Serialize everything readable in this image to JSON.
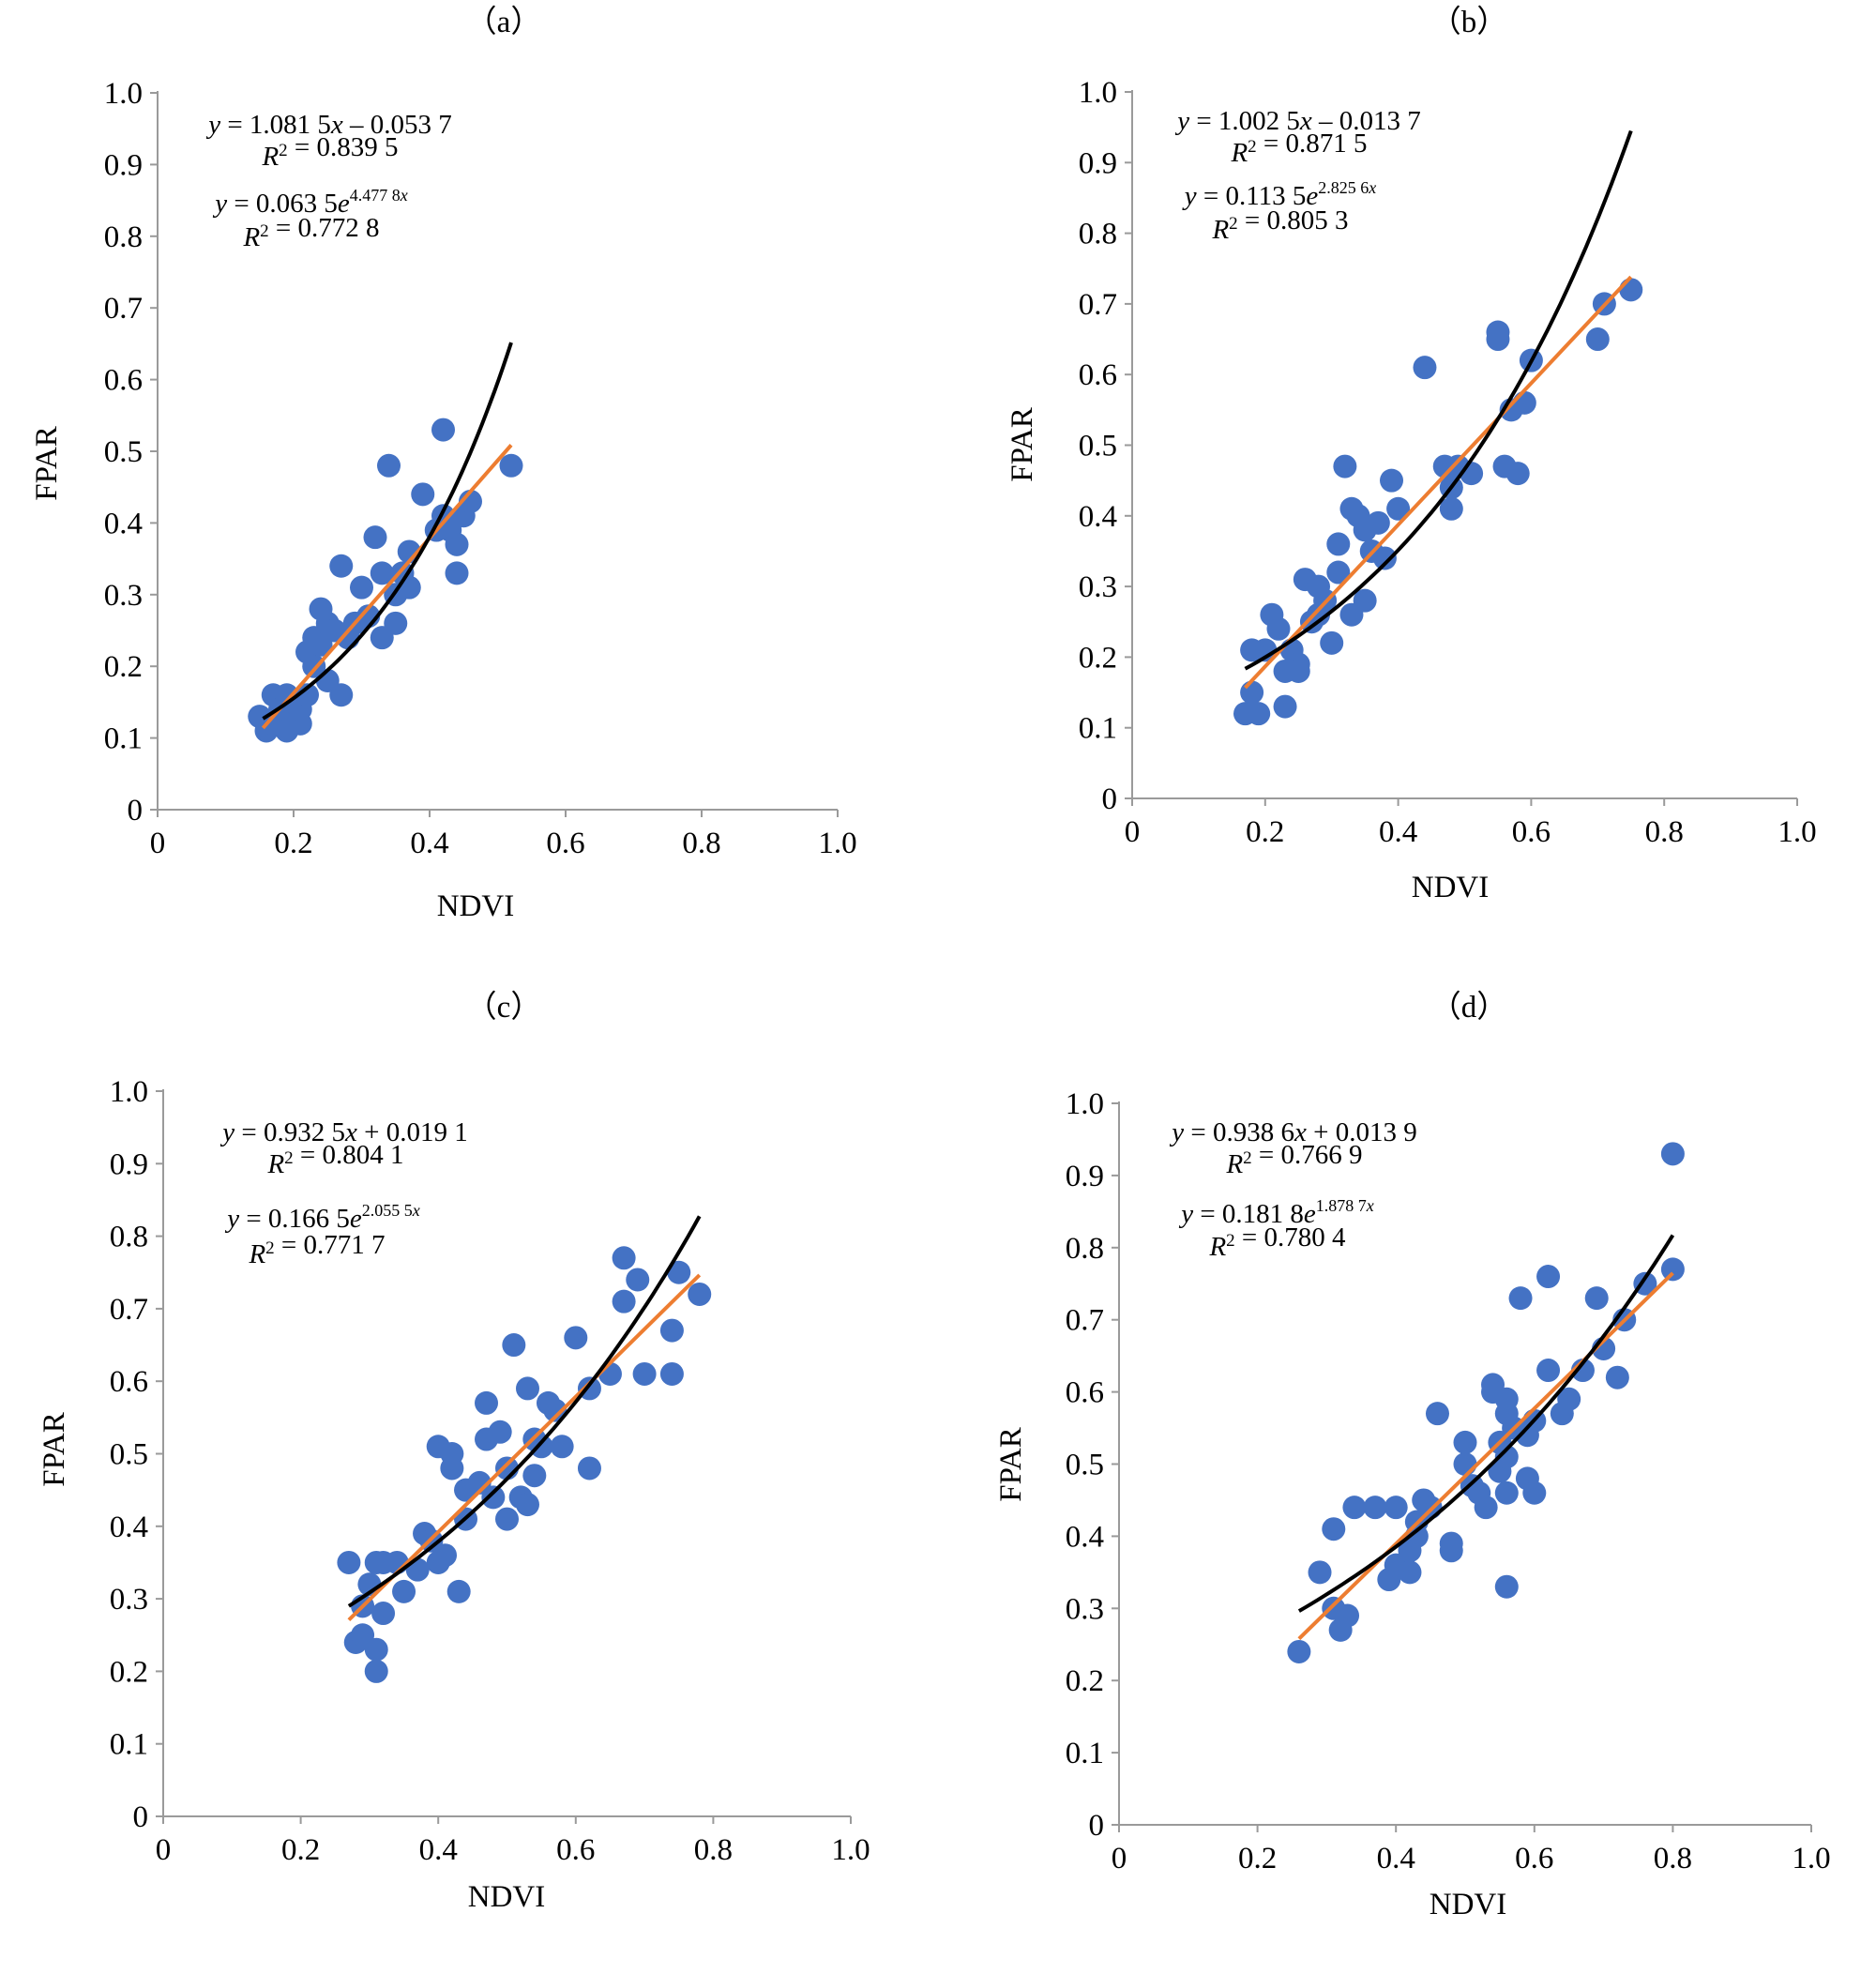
{
  "colors": {
    "points": "#4472c4",
    "linear_fit": "#ed7d31",
    "exp_fit": "#000000",
    "axis": "#9a9a9a"
  },
  "chart_data": [
    {
      "type": "scatter",
      "panel": "（a）",
      "xlabel": "NDVI",
      "ylabel": "FPAR",
      "xlim": [
        0,
        1.0
      ],
      "ylim": [
        0,
        1.0
      ],
      "xticks": [
        "0",
        "0.2",
        "0.4",
        "0.6",
        "0.8",
        "1.0"
      ],
      "yticks": [
        "0",
        "0.1",
        "0.2",
        "0.3",
        "0.4",
        "0.5",
        "0.6",
        "0.7",
        "0.8",
        "0.9",
        "1.0"
      ],
      "eq1": "y = 1.081 5x – 0.053 7",
      "r1": "R² = 0.839 5",
      "eq2": "y = 0.063 5e^(4.477 8x)",
      "r2": "R² = 0.772 8",
      "linear_fit": {
        "slope": 1.0815,
        "intercept": -0.0537,
        "x_range": [
          0.155,
          0.52
        ]
      },
      "exp_fit": {
        "a": 0.0635,
        "b": 4.4778,
        "x_range": [
          0.155,
          0.52
        ]
      },
      "points": [
        [
          0.15,
          0.13
        ],
        [
          0.16,
          0.11
        ],
        [
          0.17,
          0.16
        ],
        [
          0.17,
          0.12
        ],
        [
          0.18,
          0.15
        ],
        [
          0.18,
          0.14
        ],
        [
          0.19,
          0.16
        ],
        [
          0.19,
          0.11
        ],
        [
          0.2,
          0.13
        ],
        [
          0.2,
          0.15
        ],
        [
          0.21,
          0.12
        ],
        [
          0.21,
          0.14
        ],
        [
          0.22,
          0.16
        ],
        [
          0.22,
          0.22
        ],
        [
          0.23,
          0.24
        ],
        [
          0.23,
          0.2
        ],
        [
          0.24,
          0.28
        ],
        [
          0.24,
          0.23
        ],
        [
          0.25,
          0.26
        ],
        [
          0.25,
          0.18
        ],
        [
          0.26,
          0.25
        ],
        [
          0.27,
          0.16
        ],
        [
          0.27,
          0.34
        ],
        [
          0.28,
          0.24
        ],
        [
          0.29,
          0.26
        ],
        [
          0.3,
          0.31
        ],
        [
          0.31,
          0.27
        ],
        [
          0.32,
          0.38
        ],
        [
          0.33,
          0.33
        ],
        [
          0.33,
          0.24
        ],
        [
          0.34,
          0.48
        ],
        [
          0.35,
          0.3
        ],
        [
          0.35,
          0.26
        ],
        [
          0.36,
          0.33
        ],
        [
          0.37,
          0.36
        ],
        [
          0.37,
          0.31
        ],
        [
          0.39,
          0.44
        ],
        [
          0.41,
          0.39
        ],
        [
          0.42,
          0.41
        ],
        [
          0.42,
          0.53
        ],
        [
          0.43,
          0.39
        ],
        [
          0.44,
          0.37
        ],
        [
          0.44,
          0.33
        ],
        [
          0.45,
          0.41
        ],
        [
          0.46,
          0.43
        ],
        [
          0.52,
          0.48
        ]
      ]
    },
    {
      "type": "scatter",
      "panel": "（b）",
      "xlabel": "NDVI",
      "ylabel": "FPAR",
      "xlim": [
        0,
        1.0
      ],
      "ylim": [
        0,
        1.0
      ],
      "xticks": [
        "0",
        "0.2",
        "0.4",
        "0.6",
        "0.8",
        "1.0"
      ],
      "yticks": [
        "0",
        "0.1",
        "0.2",
        "0.3",
        "0.4",
        "0.5",
        "0.6",
        "0.7",
        "0.8",
        "0.9",
        "1.0"
      ],
      "eq1": "y = 1.002 5x – 0.013 7",
      "r1": "R² = 0.871 5",
      "eq2": "y = 0.113 5e^(2.825 6x)",
      "r2": "R² = 0.805 3",
      "linear_fit": {
        "slope": 1.0025,
        "intercept": -0.0137,
        "x_range": [
          0.17,
          0.75
        ]
      },
      "exp_fit": {
        "a": 0.1135,
        "b": 2.8256,
        "x_range": [
          0.17,
          0.75
        ]
      },
      "points": [
        [
          0.17,
          0.12
        ],
        [
          0.18,
          0.15
        ],
        [
          0.18,
          0.21
        ],
        [
          0.19,
          0.12
        ],
        [
          0.2,
          0.21
        ],
        [
          0.21,
          0.26
        ],
        [
          0.22,
          0.24
        ],
        [
          0.23,
          0.13
        ],
        [
          0.23,
          0.18
        ],
        [
          0.24,
          0.21
        ],
        [
          0.25,
          0.19
        ],
        [
          0.25,
          0.18
        ],
        [
          0.26,
          0.31
        ],
        [
          0.27,
          0.25
        ],
        [
          0.28,
          0.26
        ],
        [
          0.28,
          0.3
        ],
        [
          0.29,
          0.28
        ],
        [
          0.3,
          0.22
        ],
        [
          0.31,
          0.36
        ],
        [
          0.31,
          0.32
        ],
        [
          0.32,
          0.47
        ],
        [
          0.33,
          0.41
        ],
        [
          0.33,
          0.26
        ],
        [
          0.34,
          0.4
        ],
        [
          0.35,
          0.38
        ],
        [
          0.35,
          0.28
        ],
        [
          0.36,
          0.35
        ],
        [
          0.37,
          0.39
        ],
        [
          0.38,
          0.34
        ],
        [
          0.39,
          0.45
        ],
        [
          0.4,
          0.41
        ],
        [
          0.44,
          0.61
        ],
        [
          0.47,
          0.47
        ],
        [
          0.48,
          0.44
        ],
        [
          0.48,
          0.41
        ],
        [
          0.49,
          0.47
        ],
        [
          0.51,
          0.46
        ],
        [
          0.55,
          0.65
        ],
        [
          0.55,
          0.66
        ],
        [
          0.56,
          0.47
        ],
        [
          0.57,
          0.55
        ],
        [
          0.58,
          0.46
        ],
        [
          0.59,
          0.56
        ],
        [
          0.6,
          0.62
        ],
        [
          0.7,
          0.65
        ],
        [
          0.71,
          0.7
        ],
        [
          0.75,
          0.72
        ]
      ]
    },
    {
      "type": "scatter",
      "panel": "（c）",
      "xlabel": "NDVI",
      "ylabel": "FPAR",
      "xlim": [
        0,
        1.0
      ],
      "ylim": [
        0,
        1.0
      ],
      "xticks": [
        "0",
        "0.2",
        "0.4",
        "0.6",
        "0.8",
        "1.0"
      ],
      "yticks": [
        "0",
        "0.1",
        "0.2",
        "0.3",
        "0.4",
        "0.5",
        "0.6",
        "0.7",
        "0.8",
        "0.9",
        "1.0"
      ],
      "eq1": "y = 0.932 5x + 0.019 1",
      "r1": "R² = 0.804 1",
      "eq2": "y = 0.166 5e^(2.055 5x)",
      "r2": "R² = 0.771 7",
      "linear_fit": {
        "slope": 0.9325,
        "intercept": 0.0191,
        "x_range": [
          0.27,
          0.78
        ]
      },
      "exp_fit": {
        "a": 0.1665,
        "b": 2.0555,
        "x_range": [
          0.27,
          0.78
        ]
      },
      "points": [
        [
          0.27,
          0.35
        ],
        [
          0.28,
          0.24
        ],
        [
          0.29,
          0.29
        ],
        [
          0.29,
          0.25
        ],
        [
          0.3,
          0.32
        ],
        [
          0.31,
          0.35
        ],
        [
          0.31,
          0.23
        ],
        [
          0.31,
          0.2
        ],
        [
          0.32,
          0.35
        ],
        [
          0.32,
          0.28
        ],
        [
          0.34,
          0.35
        ],
        [
          0.35,
          0.31
        ],
        [
          0.37,
          0.34
        ],
        [
          0.38,
          0.39
        ],
        [
          0.39,
          0.38
        ],
        [
          0.4,
          0.51
        ],
        [
          0.4,
          0.35
        ],
        [
          0.41,
          0.36
        ],
        [
          0.42,
          0.48
        ],
        [
          0.42,
          0.5
        ],
        [
          0.43,
          0.31
        ],
        [
          0.44,
          0.45
        ],
        [
          0.44,
          0.41
        ],
        [
          0.46,
          0.46
        ],
        [
          0.47,
          0.57
        ],
        [
          0.47,
          0.52
        ],
        [
          0.48,
          0.44
        ],
        [
          0.49,
          0.53
        ],
        [
          0.5,
          0.48
        ],
        [
          0.5,
          0.41
        ],
        [
          0.51,
          0.65
        ],
        [
          0.52,
          0.44
        ],
        [
          0.53,
          0.59
        ],
        [
          0.53,
          0.43
        ],
        [
          0.54,
          0.47
        ],
        [
          0.54,
          0.52
        ],
        [
          0.55,
          0.51
        ],
        [
          0.56,
          0.57
        ],
        [
          0.57,
          0.56
        ],
        [
          0.58,
          0.51
        ],
        [
          0.6,
          0.66
        ],
        [
          0.62,
          0.48
        ],
        [
          0.62,
          0.59
        ],
        [
          0.65,
          0.61
        ],
        [
          0.67,
          0.77
        ],
        [
          0.67,
          0.71
        ],
        [
          0.69,
          0.74
        ],
        [
          0.7,
          0.61
        ],
        [
          0.74,
          0.67
        ],
        [
          0.74,
          0.61
        ],
        [
          0.75,
          0.75
        ],
        [
          0.78,
          0.72
        ]
      ]
    },
    {
      "type": "scatter",
      "panel": "（d）",
      "xlabel": "NDVI",
      "ylabel": "FPAR",
      "xlim": [
        0,
        1.0
      ],
      "ylim": [
        0,
        1.0
      ],
      "xticks": [
        "0",
        "0.2",
        "0.4",
        "0.6",
        "0.8",
        "1.0"
      ],
      "yticks": [
        "0",
        "0.1",
        "0.2",
        "0.3",
        "0.4",
        "0.5",
        "0.6",
        "0.7",
        "0.8",
        "0.9",
        "1.0"
      ],
      "eq1": "y = 0.938 6x + 0.013 9",
      "r1": "R² = 0.766 9",
      "eq2": "y = 0.181 8e^(1.878 7x)",
      "r2": "R² = 0.780 4",
      "linear_fit": {
        "slope": 0.9386,
        "intercept": 0.0139,
        "x_range": [
          0.26,
          0.8
        ]
      },
      "exp_fit": {
        "a": 0.1818,
        "b": 1.8787,
        "x_range": [
          0.26,
          0.8
        ]
      },
      "points": [
        [
          0.26,
          0.24
        ],
        [
          0.29,
          0.35
        ],
        [
          0.31,
          0.41
        ],
        [
          0.31,
          0.3
        ],
        [
          0.32,
          0.27
        ],
        [
          0.33,
          0.29
        ],
        [
          0.34,
          0.44
        ],
        [
          0.37,
          0.44
        ],
        [
          0.39,
          0.34
        ],
        [
          0.4,
          0.44
        ],
        [
          0.4,
          0.36
        ],
        [
          0.42,
          0.38
        ],
        [
          0.42,
          0.35
        ],
        [
          0.43,
          0.42
        ],
        [
          0.43,
          0.4
        ],
        [
          0.44,
          0.45
        ],
        [
          0.45,
          0.44
        ],
        [
          0.46,
          0.57
        ],
        [
          0.48,
          0.39
        ],
        [
          0.48,
          0.38
        ],
        [
          0.5,
          0.5
        ],
        [
          0.5,
          0.53
        ],
        [
          0.51,
          0.47
        ],
        [
          0.52,
          0.46
        ],
        [
          0.53,
          0.44
        ],
        [
          0.54,
          0.61
        ],
        [
          0.54,
          0.6
        ],
        [
          0.55,
          0.53
        ],
        [
          0.55,
          0.49
        ],
        [
          0.56,
          0.59
        ],
        [
          0.56,
          0.57
        ],
        [
          0.56,
          0.51
        ],
        [
          0.56,
          0.46
        ],
        [
          0.56,
          0.33
        ],
        [
          0.57,
          0.55
        ],
        [
          0.58,
          0.73
        ],
        [
          0.59,
          0.54
        ],
        [
          0.59,
          0.48
        ],
        [
          0.6,
          0.56
        ],
        [
          0.6,
          0.46
        ],
        [
          0.62,
          0.76
        ],
        [
          0.62,
          0.63
        ],
        [
          0.64,
          0.57
        ],
        [
          0.65,
          0.59
        ],
        [
          0.67,
          0.63
        ],
        [
          0.69,
          0.73
        ],
        [
          0.7,
          0.66
        ],
        [
          0.72,
          0.62
        ],
        [
          0.73,
          0.7
        ],
        [
          0.76,
          0.75
        ],
        [
          0.8,
          0.93
        ],
        [
          0.8,
          0.77
        ]
      ]
    }
  ]
}
